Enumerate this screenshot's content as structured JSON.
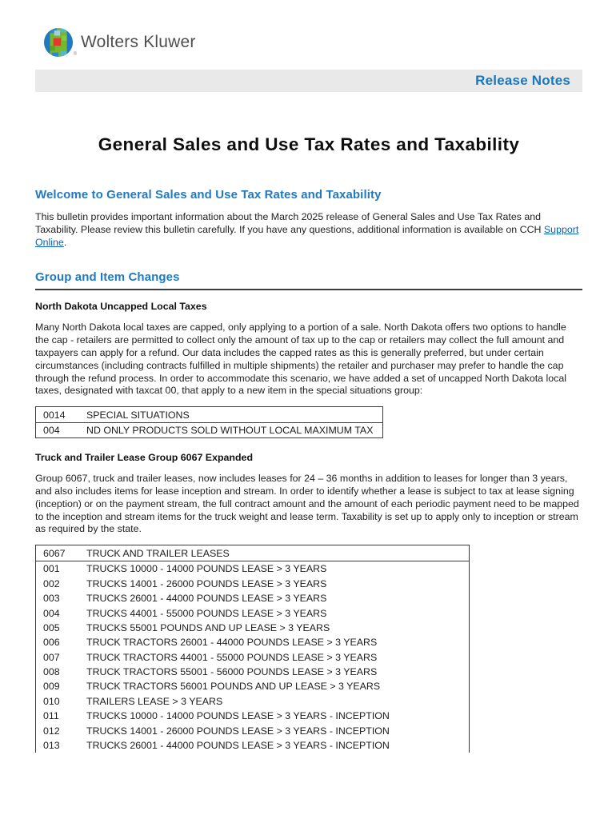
{
  "header": {
    "logo_text": "Wolters Kluwer",
    "registered_mark": "®",
    "banner_label": "Release Notes"
  },
  "title": "General Sales and Use Tax Rates and Taxability",
  "sections": {
    "welcome": {
      "heading": "Welcome to General Sales and Use Tax Rates and Taxability",
      "body_before_link": "This bulletin provides important information about the March 2025 release of General Sales and Use Tax Rates and Taxability. Please review this bulletin carefully. If you have any questions, additional information is available on CCH ",
      "link_text": "Support Online",
      "body_after_link": "."
    },
    "group_item_changes": {
      "heading": "Group and Item Changes",
      "north_dakota": {
        "subheading": "North Dakota Uncapped Local Taxes",
        "body": "Many North Dakota local taxes are capped, only applying to a portion of a sale. North Dakota offers two options to handle the cap - retailers are permitted to collect only the amount of tax up to the cap or retailers may collect the full amount and taxpayers can apply for a refund. Our data includes the capped rates as this is generally preferred, but under certain circumstances (including contracts fulfilled in multiple shipments) the retailer and purchaser may prefer to handle the cap through the refund process. In order to accommodate this scenario, we have added a set of uncapped North Dakota local taxes, designated with taxcat 00, that apply to a new item in the special situations group:",
        "table": {
          "rows": [
            {
              "code": "0014",
              "description": "SPECIAL SITUATIONS"
            },
            {
              "code": "004",
              "description": "ND ONLY PRODUCTS SOLD WITHOUT LOCAL MAXIMUM TAX"
            }
          ]
        }
      },
      "truck_trailer": {
        "subheading": "Truck and Trailer Lease Group 6067 Expanded",
        "body": "Group 6067, truck and trailer leases, now includes leases for 24 – 36 months in addition to leases for longer than 3 years, and also includes items for lease inception and stream. In order to identify whether a lease is subject to tax at lease signing (inception) or on the payment stream, the full contract amount and the amount of each periodic payment need to be mapped to the inception and stream items for the truck weight and lease term.  Taxability is set up to apply only to inception or stream as required by the state.",
        "table": {
          "header": {
            "code": "6067",
            "description": "TRUCK AND TRAILER LEASES"
          },
          "rows": [
            {
              "code": "001",
              "description": "TRUCKS 10000 - 14000 POUNDS LEASE > 3 YEARS"
            },
            {
              "code": "002",
              "description": "TRUCKS 14001 - 26000 POUNDS LEASE > 3 YEARS"
            },
            {
              "code": "003",
              "description": "TRUCKS 26001 - 44000 POUNDS LEASE > 3 YEARS"
            },
            {
              "code": "004",
              "description": "TRUCKS 44001 - 55000 POUNDS LEASE > 3 YEARS"
            },
            {
              "code": "005",
              "description": "TRUCKS 55001 POUNDS AND UP LEASE > 3 YEARS"
            },
            {
              "code": "006",
              "description": "TRUCK TRACTORS 26001 - 44000 POUNDS LEASE > 3 YEARS"
            },
            {
              "code": "007",
              "description": "TRUCK TRACTORS 44001 - 55000 POUNDS LEASE > 3 YEARS"
            },
            {
              "code": "008",
              "description": "TRUCK TRACTORS 55001 - 56000 POUNDS LEASE > 3 YEARS"
            },
            {
              "code": "009",
              "description": "TRUCK TRACTORS 56001 POUNDS AND UP LEASE > 3 YEARS"
            },
            {
              "code": "010",
              "description": "TRAILERS LEASE > 3 YEARS"
            },
            {
              "code": "011",
              "description": "TRUCKS 10000 - 14000 POUNDS LEASE > 3 YEARS - INCEPTION"
            },
            {
              "code": "012",
              "description": "TRUCKS 14001 - 26000 POUNDS LEASE > 3 YEARS - INCEPTION"
            },
            {
              "code": "013",
              "description": "TRUCKS 26001 - 44000 POUNDS LEASE > 3 YEARS - INCEPTION"
            }
          ]
        }
      }
    }
  },
  "colors": {
    "heading_blue": "#1f7ac4",
    "banner_blue": "#1778c2",
    "link_blue": "#0563c1",
    "banner_gray": "#e9e9e9",
    "rule_dark": "#3d3d3d",
    "logo_green": "#76b82a",
    "logo_blue": "#2178c4",
    "logo_teal": "#54b8c6",
    "logo_red": "#e5372e",
    "logo_text_gray": "#4f4f4f"
  }
}
